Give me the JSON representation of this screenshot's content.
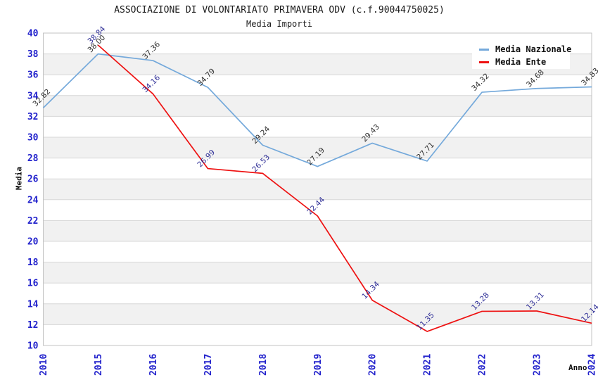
{
  "header": {
    "title": "ASSOCIAZIONE DI VOLONTARIATO PRIMAVERA ODV (c.f.90044750025)",
    "subtitle": "Media Importi"
  },
  "legend": {
    "position": "top-right",
    "items": [
      {
        "label": "Media Nazionale",
        "color": "#74a9db"
      },
      {
        "label": "Media Ente",
        "color": "#ee1111"
      }
    ]
  },
  "chart_data": {
    "type": "line",
    "title": "ASSOCIAZIONE DI VOLONTARIATO PRIMAVERA ODV (c.f.90044750025)",
    "subtitle": "Media Importi",
    "xlabel": "Anno",
    "ylabel": "Media",
    "categories": [
      "2010",
      "2015",
      "2016",
      "2017",
      "2018",
      "2019",
      "2020",
      "2021",
      "2022",
      "2023",
      "2024"
    ],
    "series": [
      {
        "name": "Media Nazionale",
        "color": "#74a9db",
        "label_color": "#2e2e2e",
        "values": [
          32.82,
          38.0,
          37.36,
          34.79,
          29.24,
          27.19,
          29.43,
          27.71,
          34.32,
          34.68,
          34.83
        ]
      },
      {
        "name": "Media Ente",
        "color": "#ee1111",
        "label_color": "#2d2d96",
        "values": [
          null,
          38.84,
          34.16,
          26.99,
          26.53,
          22.44,
          14.34,
          11.35,
          13.28,
          13.31,
          12.14
        ]
      }
    ],
    "ylim": [
      10,
      40
    ],
    "yticks": [
      40,
      38,
      36,
      34,
      32,
      30,
      28,
      26,
      24,
      22,
      20,
      18,
      16,
      14,
      12,
      10
    ],
    "grid": "horizontal",
    "band_fill": true,
    "value_label_decimals": 2,
    "tick_color": "#2222cc",
    "band_color": "#f1f1f1",
    "grid_color": "#d7d7d7",
    "border_color": "#c3c3c3",
    "legend_position": "top-right"
  }
}
